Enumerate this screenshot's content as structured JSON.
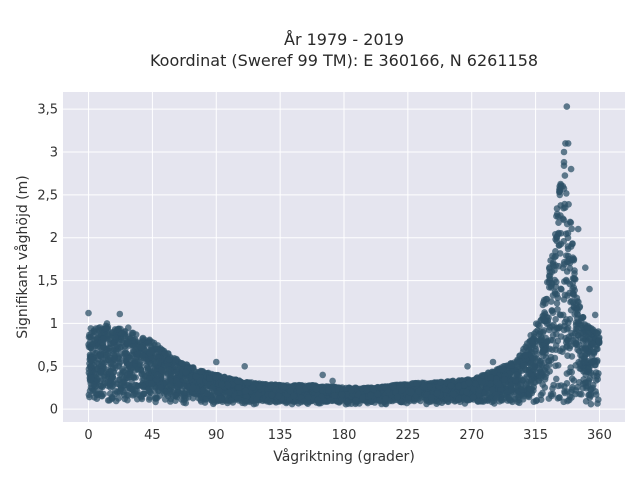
{
  "chart_data": {
    "type": "scatter",
    "title": [
      "År 1979 - 2019",
      "Koordinat (Sweref 99 TM): E 360166, N 6261158"
    ],
    "xlabel": "Vågriktning (grader)",
    "ylabel": "Signifikant våghöjd (m)",
    "xlim": [
      -18,
      378
    ],
    "ylim": [
      -0.15,
      3.7
    ],
    "x_ticks": [
      0,
      45,
      90,
      135,
      180,
      225,
      270,
      315,
      360
    ],
    "x_tick_labels": [
      "0",
      "45",
      "90",
      "135",
      "180",
      "225",
      "270",
      "315",
      "360"
    ],
    "y_ticks": [
      0,
      0.5,
      1,
      1.5,
      2,
      2.5,
      3,
      3.5
    ],
    "y_tick_labels": [
      "0",
      "0,5",
      "1",
      "1,5",
      "2",
      "2,5",
      "3",
      "3,5"
    ],
    "grid": true,
    "marker_color": "#2e5168",
    "background_color": "#e5e5ef",
    "envelope": {
      "x": [
        0,
        10,
        20,
        30,
        45,
        60,
        75,
        90,
        110,
        135,
        160,
        180,
        200,
        225,
        250,
        270,
        285,
        300,
        310,
        320,
        325,
        330,
        335,
        340,
        345,
        350,
        355,
        360
      ],
      "y_max": [
        0.95,
        0.98,
        0.95,
        0.9,
        0.8,
        0.6,
        0.48,
        0.4,
        0.32,
        0.28,
        0.28,
        0.25,
        0.25,
        0.3,
        0.32,
        0.35,
        0.45,
        0.55,
        0.8,
        1.2,
        1.7,
        2.4,
        2.9,
        2.2,
        1.3,
        1.0,
        0.95,
        0.9
      ]
    },
    "outliers": [
      {
        "x": 0,
        "y": 1.12
      },
      {
        "x": 22,
        "y": 1.11
      },
      {
        "x": 13,
        "y": 1.0
      },
      {
        "x": 28,
        "y": 0.95
      },
      {
        "x": 38,
        "y": 0.82
      },
      {
        "x": 90,
        "y": 0.55
      },
      {
        "x": 110,
        "y": 0.5
      },
      {
        "x": 165,
        "y": 0.4
      },
      {
        "x": 172,
        "y": 0.33
      },
      {
        "x": 267,
        "y": 0.5
      },
      {
        "x": 285,
        "y": 0.55
      },
      {
        "x": 302,
        "y": 0.55
      },
      {
        "x": 312,
        "y": 0.8
      },
      {
        "x": 325,
        "y": 1.6
      },
      {
        "x": 332,
        "y": 2.6
      },
      {
        "x": 335,
        "y": 3.0
      },
      {
        "x": 336,
        "y": 3.1
      },
      {
        "x": 338,
        "y": 3.1
      },
      {
        "x": 337,
        "y": 3.53
      },
      {
        "x": 340,
        "y": 2.8
      },
      {
        "x": 345,
        "y": 2.1
      },
      {
        "x": 350,
        "y": 1.65
      },
      {
        "x": 353,
        "y": 1.4
      },
      {
        "x": 357,
        "y": 1.1
      }
    ]
  }
}
